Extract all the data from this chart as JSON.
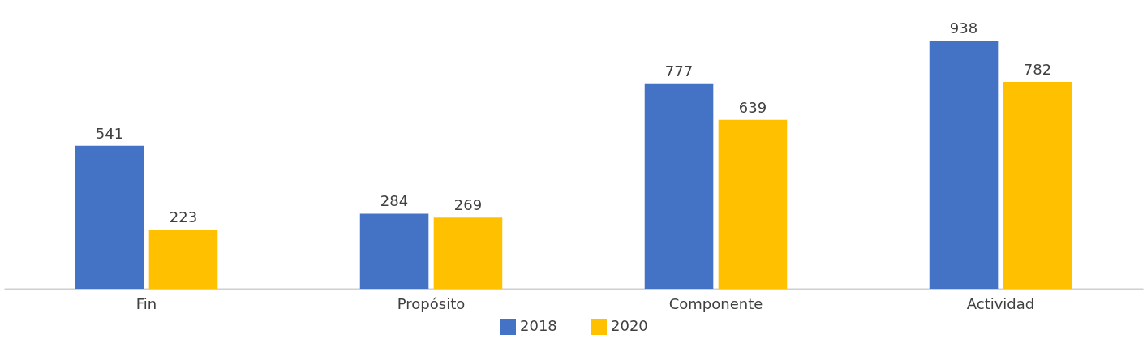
{
  "chart_data": {
    "type": "bar",
    "categories": [
      "Fin",
      "Propósito",
      "Componente",
      "Actividad"
    ],
    "series": [
      {
        "name": "2018",
        "color": "#4472c4",
        "values": [
          541,
          284,
          777,
          938
        ]
      },
      {
        "name": "2020",
        "color": "#ffc000",
        "values": [
          223,
          269,
          639,
          782
        ]
      }
    ],
    "data_labels": true,
    "legend": "bottom",
    "tick_labels": "x"
  }
}
